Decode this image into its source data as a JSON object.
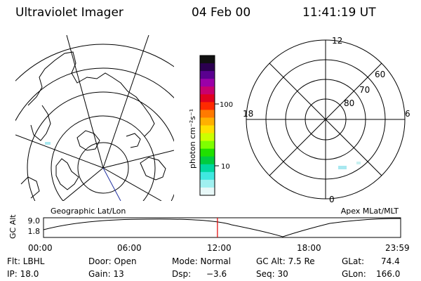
{
  "header": {
    "title": "Ultraviolet Imager",
    "date": "04 Feb 00",
    "time": "11:41:19 UT"
  },
  "panels": {
    "left_label": "Geographic Lat/Lon",
    "right_label": "Apex MLat/MLT"
  },
  "colorbar": {
    "unit_label": "photon cm⁻²s⁻¹",
    "ticks": [
      "100",
      "10"
    ],
    "colors": [
      "#111111",
      "#2b0050",
      "#5a0090",
      "#9b00a8",
      "#c8006e",
      "#e00020",
      "#ff2a00",
      "#ff7a00",
      "#ffb000",
      "#ffe000",
      "#ccff00",
      "#7eff00",
      "#20e000",
      "#00cc40",
      "#00d8a0",
      "#40e8e0",
      "#a0f0f0",
      "#e8f8f8"
    ]
  },
  "polar": {
    "mlt_labels": {
      "top": "12",
      "left": "18",
      "right": "6",
      "bottom": "0"
    },
    "lat_labels": [
      "60",
      "70",
      "80"
    ]
  },
  "timeline": {
    "ylabel": "GC Alt",
    "yticks": [
      "9.0",
      "1.8"
    ],
    "xticks": [
      "00:00",
      "06:00",
      "12:00",
      "18:00",
      "23:59"
    ],
    "current_time_fraction": 0.487
  },
  "info": {
    "flt": "Flt: LBHL",
    "door": "Door: Open",
    "mode": "Mode: Normal",
    "gcalt": "GC Alt: 7.5 Re",
    "glat_label": "GLat:",
    "glat_value": "74.4",
    "ip": "IP: 18.0",
    "gain": "Gain: 13",
    "dsp_label": "Dsp:",
    "dsp_value": "−3.6",
    "seq": "Seq: 30",
    "glon_label": "GLon:",
    "glon_value": "166.0"
  }
}
